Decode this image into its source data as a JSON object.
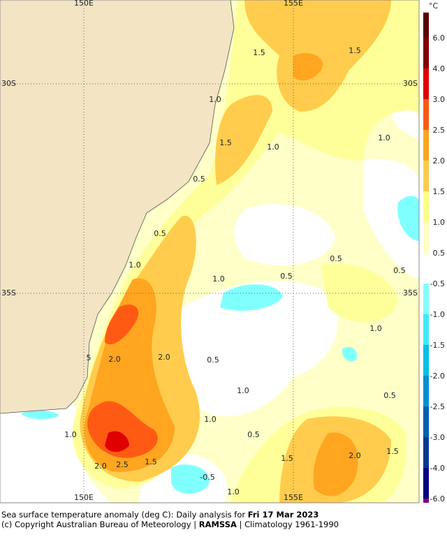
{
  "map": {
    "lon_labels": [
      "150E",
      "155E"
    ],
    "lat_labels": [
      "30S",
      "35S"
    ],
    "contour_labels": [
      "1.5",
      "1.5",
      "1.0",
      "1.5",
      "1.0",
      "1.0",
      "0.5",
      "0.5",
      "1.0",
      "1.0",
      "0.5",
      "0.5",
      "0.5",
      "1.0",
      "2.0",
      "2.0",
      "0.5",
      "5",
      "1.0",
      "1.0",
      "1.0",
      "0.5",
      "0.5",
      "2.0",
      "2.5",
      "1.5",
      "1.5",
      "2.0",
      "1.5",
      "-0.5",
      "1.0"
    ]
  },
  "colorbar": {
    "unit": "°C",
    "levels": [
      {
        "value": 6,
        "label": "6.0"
      },
      {
        "value": 4,
        "label": "4.0"
      },
      {
        "value": 3,
        "label": "3.0"
      },
      {
        "value": 2.5,
        "label": "2.5"
      },
      {
        "value": 2,
        "label": "2.0"
      },
      {
        "value": 1.5,
        "label": "1.5"
      },
      {
        "value": 1,
        "label": "1.0"
      },
      {
        "value": 0.5,
        "label": "0.5"
      },
      {
        "value": -0.5,
        "label": "-0.5"
      },
      {
        "value": -1,
        "label": "-1.0"
      },
      {
        "value": -1.5,
        "label": "-1.5"
      },
      {
        "value": -2,
        "label": "-2.0"
      },
      {
        "value": -2.5,
        "label": "-2.5"
      },
      {
        "value": -3,
        "label": "-3.0"
      },
      {
        "value": -4,
        "label": "-4.0"
      },
      {
        "value": -6,
        "label": "-6.0"
      }
    ],
    "band_colors": [
      "#5a0000",
      "#800000",
      "#e00000",
      "#ff5a14",
      "#ffa51f",
      "#ffcc4d",
      "#ffff80",
      "#ffffc0",
      "#ffffff",
      "#80ffff",
      "#40e8f8",
      "#00c0e8",
      "#0090d0",
      "#0060b0",
      "#003a90",
      "#000080",
      "#800080"
    ]
  },
  "caption": {
    "line1": "Sea surface temperature anomaly (deg C): Daily analysis for",
    "date": "Fri 17 Mar 2023",
    "line2_prefix": "(c) Copyright Australian Bureau of Meteorology |",
    "agency": "RAMSSA",
    "line2_suffix": "| Climatology 1961-1990"
  }
}
